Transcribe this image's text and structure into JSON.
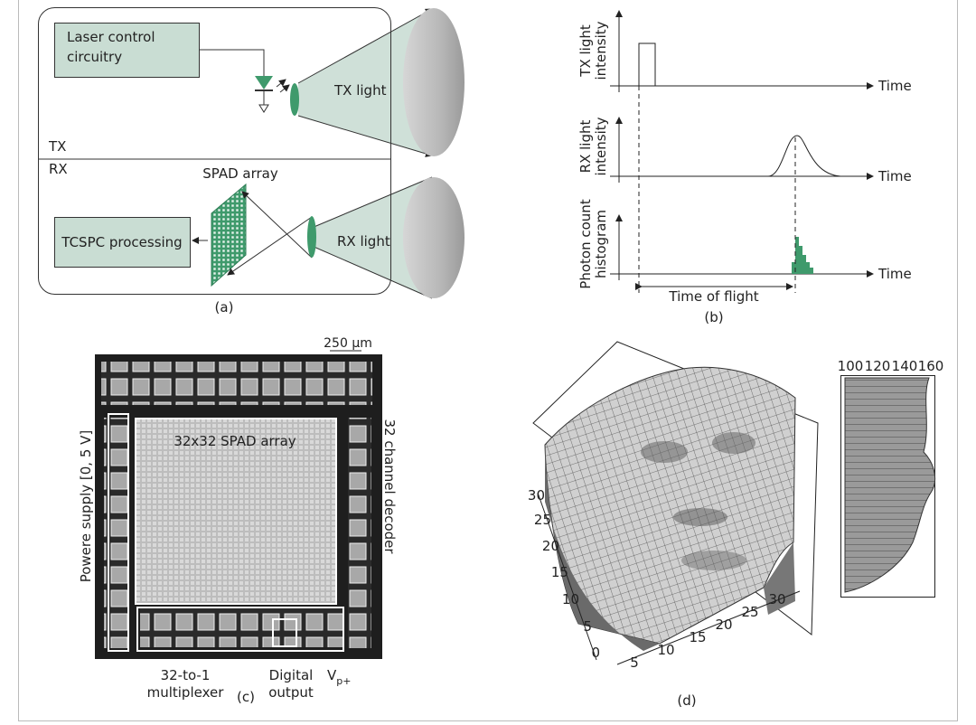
{
  "panel_a": {
    "laser_box": [
      "Laser control",
      "circuitry"
    ],
    "tx_light": "TX light",
    "tx": "TX",
    "rx": "RX",
    "spad_array": "SPAD array",
    "tcspc": "TCSPC processing",
    "rx_light": "RX light",
    "caption": "(a)"
  },
  "panel_b": {
    "tx_axis": [
      "TX light",
      "intensity"
    ],
    "rx_axis": [
      "RX light",
      "intensity"
    ],
    "hist_axis": [
      "Photon count",
      "histogram"
    ],
    "time_labels": [
      "Time",
      "Time",
      "Time"
    ],
    "tof": "Time of flight",
    "caption": "(b)"
  },
  "panel_c": {
    "scale": "250 µm",
    "array": "32x32 SPAD array",
    "power": "Powere supply [0, 5 V]",
    "decoder": "32 channel decoder",
    "mux": [
      "32-to-1",
      "multiplexer"
    ],
    "digital": [
      "Digital",
      "output"
    ],
    "vp": "V",
    "vp_sub": "p+",
    "caption": "(c)"
  },
  "panel_d": {
    "y_ticks": [
      0,
      5,
      10,
      15,
      20,
      25,
      30
    ],
    "x_ticks": [
      5,
      10,
      15,
      20,
      25,
      30
    ],
    "profile_ticks": [
      100,
      120,
      140,
      160
    ],
    "caption": "(d)"
  }
}
